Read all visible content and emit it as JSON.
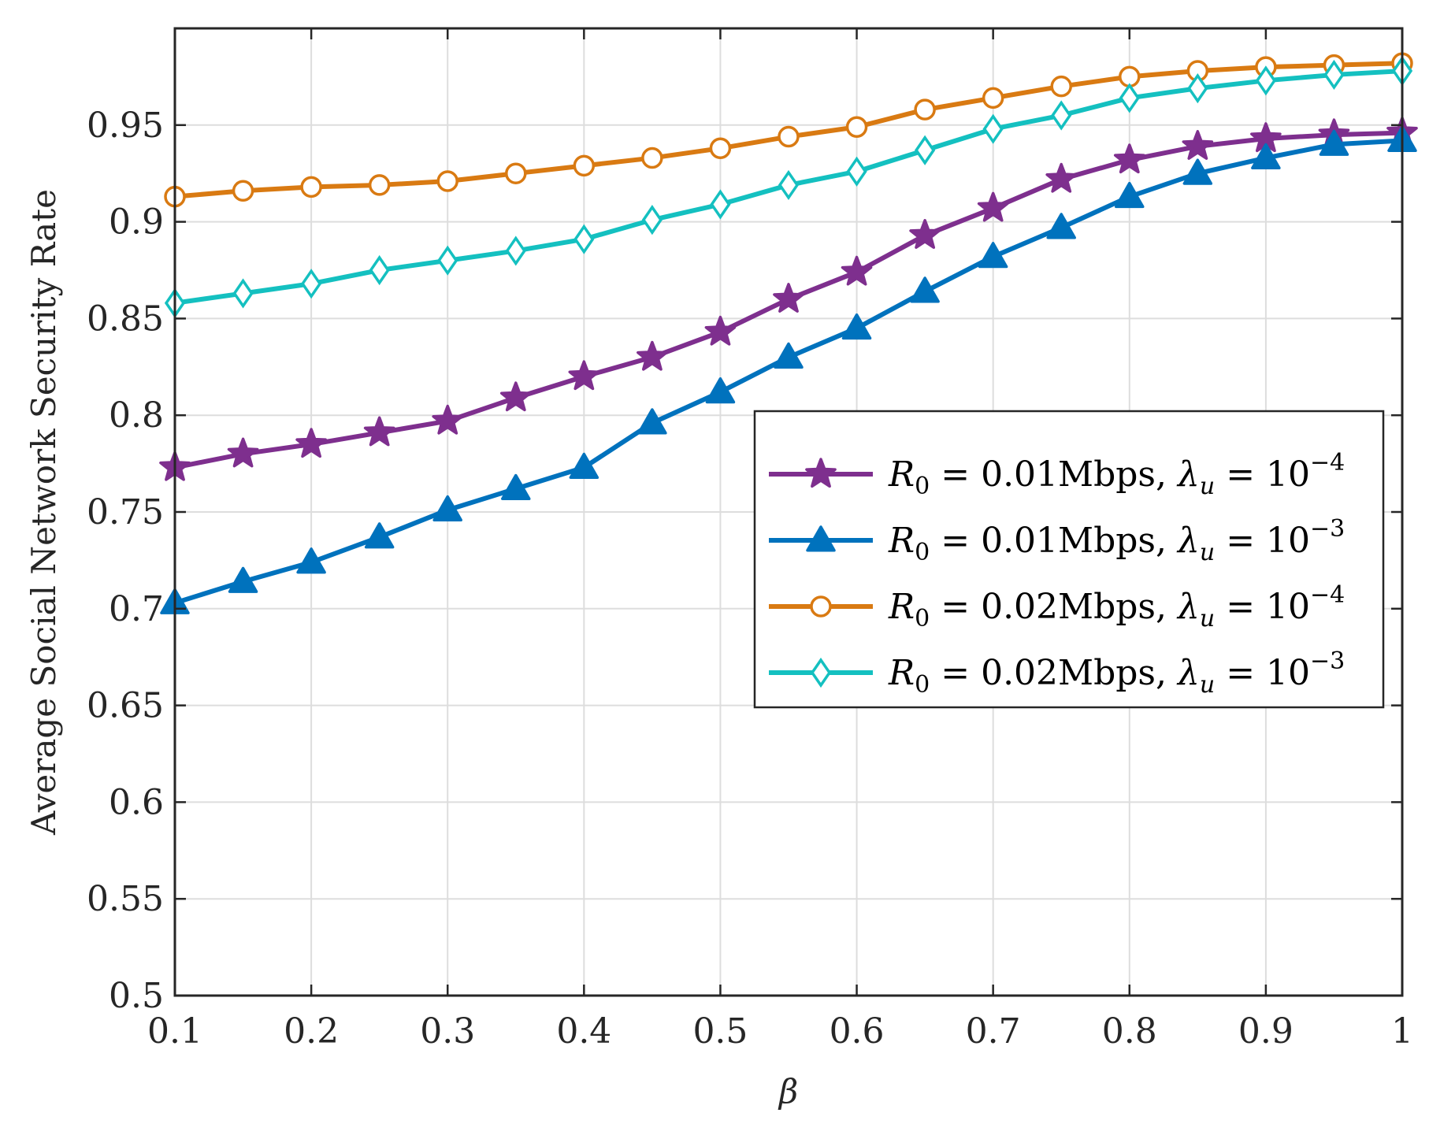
{
  "chart_data": {
    "type": "line",
    "title": "",
    "xlabel": "β",
    "ylabel": "Average Social Network Security Rate",
    "xlim": [
      0.1,
      1
    ],
    "ylim": [
      0.5,
      1.0
    ],
    "grid": true,
    "legend_position": "center-right",
    "x": [
      0.1,
      0.15,
      0.2,
      0.25,
      0.3,
      0.35,
      0.4,
      0.45,
      0.5,
      0.55,
      0.6,
      0.65,
      0.7,
      0.75,
      0.8,
      0.85,
      0.9,
      0.95,
      1.0
    ],
    "x_ticks": [
      "0.1",
      "0.2",
      "0.3",
      "0.4",
      "0.5",
      "0.6",
      "0.7",
      "0.8",
      "0.9",
      "1"
    ],
    "x_tick_values": [
      0.1,
      0.2,
      0.3,
      0.4,
      0.5,
      0.6,
      0.7,
      0.8,
      0.9,
      1.0
    ],
    "y_ticks": [
      "0.5",
      "0.55",
      "0.6",
      "0.65",
      "0.7",
      "0.75",
      "0.8",
      "0.85",
      "0.9",
      "0.95"
    ],
    "y_tick_values": [
      0.5,
      0.55,
      0.6,
      0.65,
      0.7,
      0.75,
      0.8,
      0.85,
      0.9,
      0.95
    ],
    "series": [
      {
        "name": "R0 = 0.01Mbps, λu = 10^-4",
        "legend": {
          "r": "R",
          "r_sub": "0",
          "eq1": " = 0.01Mbps, ",
          "lambda": "λ",
          "lambda_sub": "u",
          "eq2": " = 10",
          "exp": "−4"
        },
        "color": "#7E2F8E",
        "marker": "star",
        "values": [
          0.773,
          0.78,
          0.785,
          0.791,
          0.797,
          0.809,
          0.82,
          0.83,
          0.843,
          0.86,
          0.874,
          0.893,
          0.907,
          0.922,
          0.932,
          0.939,
          0.943,
          0.945,
          0.946
        ]
      },
      {
        "name": "R0 = 0.01Mbps, λu = 10^-3",
        "legend": {
          "r": "R",
          "r_sub": "0",
          "eq1": " = 0.01Mbps, ",
          "lambda": "λ",
          "lambda_sub": "u",
          "eq2": " = 10",
          "exp": "−3"
        },
        "color": "#0072BD",
        "marker": "triangle",
        "values": [
          0.703,
          0.714,
          0.724,
          0.737,
          0.751,
          0.762,
          0.773,
          0.796,
          0.812,
          0.83,
          0.845,
          0.864,
          0.882,
          0.897,
          0.913,
          0.925,
          0.933,
          0.94,
          0.942
        ]
      },
      {
        "name": "R0 = 0.02Mbps, λu = 10^-4",
        "legend": {
          "r": "R",
          "r_sub": "0",
          "eq1": " = 0.02Mbps, ",
          "lambda": "λ",
          "lambda_sub": "u",
          "eq2": " = 10",
          "exp": "−4"
        },
        "color": "#D97A12",
        "marker": "circle",
        "values": [
          0.913,
          0.916,
          0.918,
          0.919,
          0.921,
          0.925,
          0.929,
          0.933,
          0.938,
          0.944,
          0.949,
          0.958,
          0.964,
          0.97,
          0.975,
          0.978,
          0.98,
          0.981,
          0.982
        ]
      },
      {
        "name": "R0 = 0.02Mbps, λu = 10^-3",
        "legend": {
          "r": "R",
          "r_sub": "0",
          "eq1": " = 0.02Mbps, ",
          "lambda": "λ",
          "lambda_sub": "u",
          "eq2": " = 10",
          "exp": "−3"
        },
        "color": "#14C0C0",
        "marker": "diamond",
        "values": [
          0.858,
          0.863,
          0.868,
          0.875,
          0.88,
          0.885,
          0.891,
          0.901,
          0.909,
          0.919,
          0.926,
          0.937,
          0.948,
          0.955,
          0.964,
          0.969,
          0.973,
          0.976,
          0.978
        ]
      }
    ]
  }
}
